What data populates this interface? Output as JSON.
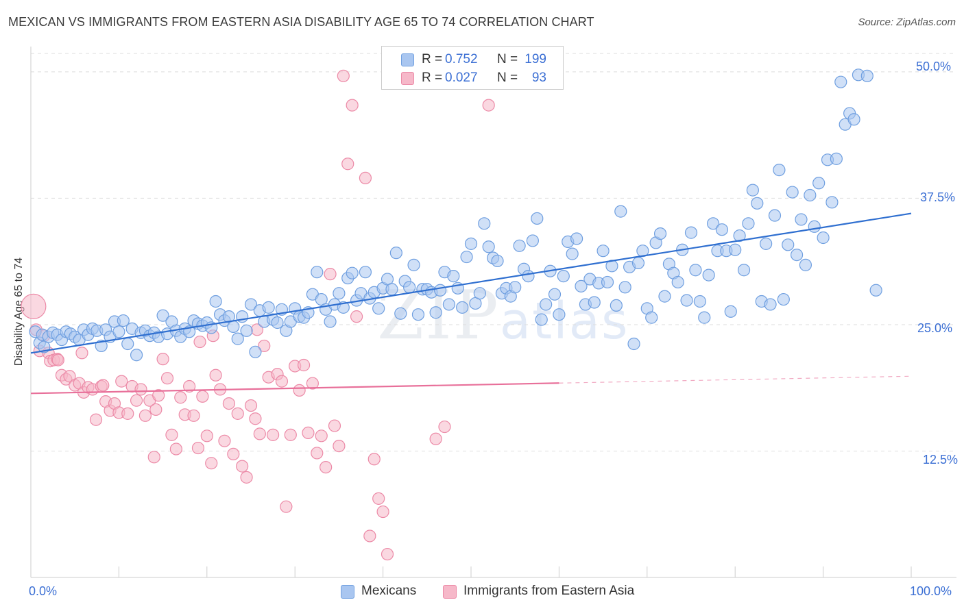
{
  "title": "MEXICAN VS IMMIGRANTS FROM EASTERN ASIA DISABILITY AGE 65 TO 74 CORRELATION CHART",
  "source": "Source: ZipAtlas.com",
  "watermark": {
    "zip": "ZIP",
    "atlas": "atlas"
  },
  "legend_top": {
    "rows": [
      {
        "r_label": "R =",
        "r_value": "0.752",
        "n_label": "N =",
        "n_value": "199",
        "color": "#a9c6f0"
      },
      {
        "r_label": "R =",
        "r_value": "0.027",
        "n_label": "N =",
        "n_value": "93",
        "color": "#f6b8c9"
      }
    ]
  },
  "legend_bottom": [
    {
      "label": "Mexicans",
      "color": "#a9c6f0"
    },
    {
      "label": "Immigrants from Eastern Asia",
      "color": "#f6b8c9"
    }
  ],
  "colors": {
    "blue_fill": "#a9c6f0",
    "blue_stroke": "#6f9fe0",
    "blue_line": "#2f6fd0",
    "pink_fill": "#f6b8c9",
    "pink_stroke": "#ec8aa7",
    "pink_line": "#e8709a",
    "tick_text": "#3b6fd4",
    "grid": "#dddddd"
  },
  "chart_data": {
    "type": "scatter",
    "title": "MEXICAN VS IMMIGRANTS FROM EASTERN ASIA DISABILITY AGE 65 TO 74 CORRELATION CHART",
    "xlabel": "",
    "ylabel": "Disability Age 65 to 74",
    "xlim": [
      0,
      100
    ],
    "ylim": [
      0,
      52.5
    ],
    "x_tick_labels": [
      "0.0%",
      "100.0%"
    ],
    "y_ticks": [
      12.5,
      25.0,
      37.5,
      50.0
    ],
    "y_tick_labels": [
      "12.5%",
      "25.0%",
      "37.5%",
      "50.0%"
    ],
    "grid": true,
    "legend_position": "top-center",
    "series": [
      {
        "name": "Mexicans",
        "trendline": {
          "x0": 0,
          "y0": 22.2,
          "x1": 100,
          "y1": 36.0,
          "dashed_from": null
        },
        "points": [
          [
            0.5,
            24.3
          ],
          [
            1,
            23.2
          ],
          [
            1.5,
            22.8
          ],
          [
            1.3,
            24.0
          ],
          [
            2,
            23.8
          ],
          [
            2.5,
            24.2
          ],
          [
            3,
            24.0
          ],
          [
            3.5,
            23.5
          ],
          [
            4,
            24.3
          ],
          [
            4.5,
            24.1
          ],
          [
            5,
            23.8
          ],
          [
            5.5,
            23.5
          ],
          [
            6,
            24.5
          ],
          [
            6.5,
            24.0
          ],
          [
            7,
            24.6
          ],
          [
            7.5,
            24.4
          ],
          [
            8,
            22.9
          ],
          [
            8.5,
            24.5
          ],
          [
            9,
            23.8
          ],
          [
            9.5,
            25.3
          ],
          [
            10,
            24.3
          ],
          [
            10.5,
            25.4
          ],
          [
            11,
            23.1
          ],
          [
            11.5,
            24.6
          ],
          [
            12,
            22.0
          ],
          [
            12.5,
            24.2
          ],
          [
            13,
            24.4
          ],
          [
            13.5,
            23.9
          ],
          [
            14,
            24.2
          ],
          [
            14.5,
            23.8
          ],
          [
            15,
            25.9
          ],
          [
            15.5,
            24.1
          ],
          [
            16,
            25.3
          ],
          [
            16.5,
            24.4
          ],
          [
            17,
            23.8
          ],
          [
            17.5,
            24.6
          ],
          [
            18,
            24.3
          ],
          [
            18.5,
            25.4
          ],
          [
            19,
            25.1
          ],
          [
            19.5,
            24.9
          ],
          [
            20,
            25.2
          ],
          [
            20.5,
            24.7
          ],
          [
            21,
            27.3
          ],
          [
            21.5,
            26.0
          ],
          [
            22,
            25.4
          ],
          [
            22.5,
            25.8
          ],
          [
            23,
            24.8
          ],
          [
            23.5,
            23.6
          ],
          [
            24,
            25.8
          ],
          [
            24.5,
            24.4
          ],
          [
            25,
            27.0
          ],
          [
            25.5,
            22.3
          ],
          [
            26,
            26.4
          ],
          [
            26.5,
            25.3
          ],
          [
            27,
            26.7
          ],
          [
            27.5,
            25.5
          ],
          [
            28,
            25.2
          ],
          [
            28.5,
            26.5
          ],
          [
            29,
            24.4
          ],
          [
            29.5,
            25.3
          ],
          [
            30,
            26.6
          ],
          [
            30.5,
            25.8
          ],
          [
            31,
            25.7
          ],
          [
            31.5,
            26.2
          ],
          [
            32,
            28.0
          ],
          [
            32.5,
            30.2
          ],
          [
            33,
            27.5
          ],
          [
            33.5,
            26.5
          ],
          [
            34,
            25.3
          ],
          [
            34.5,
            27.0
          ],
          [
            35,
            28.1
          ],
          [
            35.5,
            26.7
          ],
          [
            36,
            29.6
          ],
          [
            36.5,
            30.1
          ],
          [
            37,
            27.4
          ],
          [
            37.5,
            28.1
          ],
          [
            38,
            30.2
          ],
          [
            38.5,
            27.6
          ],
          [
            39,
            28.2
          ],
          [
            39.5,
            26.6
          ],
          [
            40,
            28.6
          ],
          [
            40.5,
            29.5
          ],
          [
            41,
            28.5
          ],
          [
            41.5,
            32.1
          ],
          [
            42,
            26.1
          ],
          [
            42.5,
            29.3
          ],
          [
            43,
            28.7
          ],
          [
            43.5,
            30.9
          ],
          [
            44,
            26.0
          ],
          [
            44.5,
            28.5
          ],
          [
            45,
            28.5
          ],
          [
            45.5,
            28.2
          ],
          [
            46,
            26.2
          ],
          [
            46.5,
            28.4
          ],
          [
            47,
            30.2
          ],
          [
            47.5,
            27.0
          ],
          [
            48,
            29.8
          ],
          [
            48.5,
            28.6
          ],
          [
            49,
            26.7
          ],
          [
            49.5,
            31.7
          ],
          [
            50,
            33.0
          ],
          [
            50.5,
            27.1
          ],
          [
            51,
            28.1
          ],
          [
            51.5,
            35.0
          ],
          [
            52,
            32.7
          ],
          [
            52.5,
            31.6
          ],
          [
            53,
            31.3
          ],
          [
            53.5,
            28.1
          ],
          [
            54,
            28.6
          ],
          [
            54.5,
            27.8
          ],
          [
            55,
            28.7
          ],
          [
            55.5,
            32.8
          ],
          [
            56,
            30.5
          ],
          [
            56.5,
            29.8
          ],
          [
            57,
            33.3
          ],
          [
            57.5,
            35.5
          ],
          [
            58,
            25.5
          ],
          [
            58.5,
            27.0
          ],
          [
            59,
            30.3
          ],
          [
            59.5,
            28.0
          ],
          [
            60,
            26.0
          ],
          [
            60.5,
            29.8
          ],
          [
            61,
            33.2
          ],
          [
            61.5,
            32.0
          ],
          [
            62,
            33.5
          ],
          [
            62.5,
            28.8
          ],
          [
            63,
            27.0
          ],
          [
            63.5,
            29.5
          ],
          [
            64,
            27.2
          ],
          [
            64.5,
            29.1
          ],
          [
            65,
            32.3
          ],
          [
            65.5,
            29.2
          ],
          [
            66,
            30.8
          ],
          [
            66.5,
            26.9
          ],
          [
            67,
            36.2
          ],
          [
            67.5,
            28.7
          ],
          [
            68,
            30.7
          ],
          [
            68.5,
            23.1
          ],
          [
            69,
            31.1
          ],
          [
            69.5,
            32.3
          ],
          [
            70,
            26.6
          ],
          [
            70.5,
            25.7
          ],
          [
            71,
            33.1
          ],
          [
            71.5,
            34.0
          ],
          [
            72,
            27.8
          ],
          [
            72.5,
            31.0
          ],
          [
            73,
            30.1
          ],
          [
            73.5,
            29.2
          ],
          [
            74,
            32.4
          ],
          [
            74.5,
            27.4
          ],
          [
            75,
            34.1
          ],
          [
            75.5,
            30.4
          ],
          [
            76,
            27.3
          ],
          [
            76.5,
            25.7
          ],
          [
            77,
            29.9
          ],
          [
            77.5,
            35.0
          ],
          [
            78,
            32.3
          ],
          [
            78.5,
            34.4
          ],
          [
            79,
            32.3
          ],
          [
            79.5,
            26.3
          ],
          [
            80,
            32.4
          ],
          [
            80.5,
            33.8
          ],
          [
            81,
            30.4
          ],
          [
            81.5,
            35.0
          ],
          [
            82,
            38.3
          ],
          [
            82.5,
            37.0
          ],
          [
            83,
            27.3
          ],
          [
            83.5,
            33.0
          ],
          [
            84,
            27.0
          ],
          [
            84.5,
            35.8
          ],
          [
            85,
            40.3
          ],
          [
            85.5,
            27.5
          ],
          [
            86,
            32.9
          ],
          [
            86.5,
            38.1
          ],
          [
            87,
            31.9
          ],
          [
            87.5,
            35.4
          ],
          [
            88,
            30.9
          ],
          [
            88.5,
            37.8
          ],
          [
            89,
            34.7
          ],
          [
            89.5,
            39.0
          ],
          [
            90,
            33.6
          ],
          [
            90.5,
            41.3
          ],
          [
            91,
            37.1
          ],
          [
            91.5,
            41.4
          ],
          [
            92,
            49.0
          ],
          [
            92.5,
            44.8
          ],
          [
            93,
            45.9
          ],
          [
            93.5,
            45.3
          ],
          [
            94,
            49.7
          ],
          [
            95,
            49.6
          ],
          [
            96,
            28.4
          ]
        ]
      },
      {
        "name": "Immigrants from Eastern Asia",
        "trendline": {
          "x0": 0,
          "y0": 18.2,
          "x1": 100,
          "y1": 19.9,
          "dashed_from": 60
        },
        "points": [
          [
            0.3,
            26.8
          ],
          [
            0.6,
            24.5
          ],
          [
            1,
            22.4
          ],
          [
            1.5,
            23.9
          ],
          [
            2,
            22.2
          ],
          [
            2.2,
            21.4
          ],
          [
            2.6,
            21.5
          ],
          [
            3,
            21.6
          ],
          [
            3.5,
            20.0
          ],
          [
            4,
            19.6
          ],
          [
            4.4,
            19.9
          ],
          [
            5,
            19.0
          ],
          [
            5.5,
            19.2
          ],
          [
            6,
            18.3
          ],
          [
            6.5,
            18.8
          ],
          [
            7,
            18.6
          ],
          [
            7.4,
            15.6
          ],
          [
            8,
            18.9
          ],
          [
            8.5,
            17.4
          ],
          [
            9,
            16.5
          ],
          [
            9.5,
            17.2
          ],
          [
            10,
            16.3
          ],
          [
            10.3,
            19.4
          ],
          [
            11,
            16.2
          ],
          [
            11.5,
            18.9
          ],
          [
            12,
            17.5
          ],
          [
            12.5,
            18.6
          ],
          [
            13,
            16.0
          ],
          [
            13.5,
            17.5
          ],
          [
            14,
            11.9
          ],
          [
            14.5,
            18.0
          ],
          [
            15,
            21.6
          ],
          [
            15.5,
            19.7
          ],
          [
            16,
            14.1
          ],
          [
            16.5,
            12.7
          ],
          [
            17,
            17.8
          ],
          [
            17.5,
            16.1
          ],
          [
            18,
            18.9
          ],
          [
            18.5,
            16.0
          ],
          [
            19,
            12.8
          ],
          [
            19.5,
            17.9
          ],
          [
            20,
            14.0
          ],
          [
            20.5,
            11.3
          ],
          [
            21,
            20.0
          ],
          [
            21.5,
            18.6
          ],
          [
            22,
            13.5
          ],
          [
            22.5,
            17.2
          ],
          [
            23,
            12.2
          ],
          [
            23.5,
            16.2
          ],
          [
            24,
            11.0
          ],
          [
            24.5,
            9.9
          ],
          [
            25,
            17.0
          ],
          [
            25.5,
            15.7
          ],
          [
            26,
            14.2
          ],
          [
            26.5,
            22.9
          ],
          [
            27,
            19.8
          ],
          [
            27.5,
            14.1
          ],
          [
            28,
            20.1
          ],
          [
            28.5,
            19.4
          ],
          [
            29,
            7.0
          ],
          [
            29.5,
            14.1
          ],
          [
            30,
            20.9
          ],
          [
            30.5,
            18.5
          ],
          [
            31,
            21.0
          ],
          [
            31.5,
            14.3
          ],
          [
            32,
            19.2
          ],
          [
            32.5,
            12.3
          ],
          [
            33,
            14.0
          ],
          [
            33.5,
            10.9
          ],
          [
            34,
            30.0
          ],
          [
            34.5,
            15.0
          ],
          [
            35,
            13.0
          ],
          [
            35.5,
            49.6
          ],
          [
            36,
            40.9
          ],
          [
            36.5,
            46.7
          ],
          [
            37,
            25.8
          ],
          [
            38,
            39.5
          ],
          [
            38.5,
            4.1
          ],
          [
            39,
            11.7
          ],
          [
            39.5,
            7.8
          ],
          [
            40,
            6.5
          ],
          [
            40.5,
            2.3
          ],
          [
            46,
            13.7
          ],
          [
            47,
            14.9
          ],
          [
            52,
            46.7
          ],
          [
            8.2,
            19.0
          ],
          [
            3.1,
            21.5
          ],
          [
            5.8,
            22.2
          ],
          [
            14.2,
            16.6
          ],
          [
            19.2,
            23.3
          ],
          [
            20.7,
            23.9
          ],
          [
            25.7,
            24.5
          ]
        ]
      }
    ]
  }
}
